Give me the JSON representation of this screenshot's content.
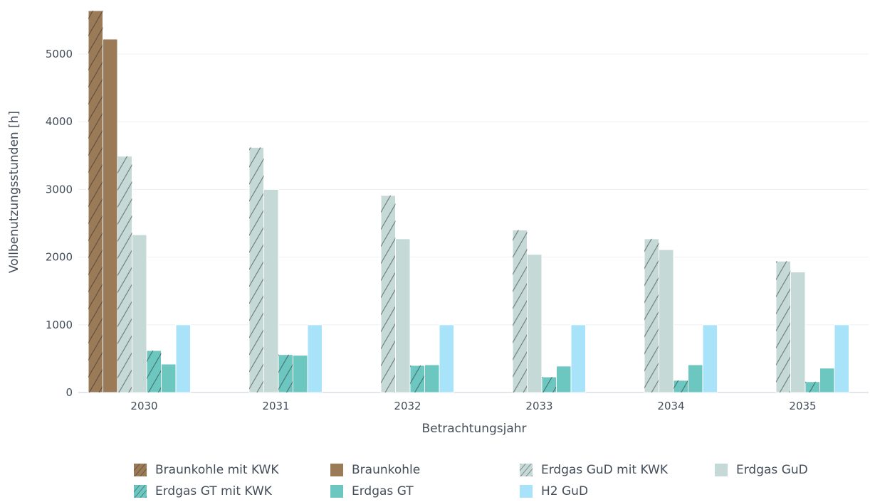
{
  "chart_data": {
    "type": "bar",
    "xlabel": "Betrachtungsjahr",
    "ylabel": "Vollbenutzungsstunden [h]",
    "categories": [
      "2030",
      "2031",
      "2032",
      "2033",
      "2034",
      "2035"
    ],
    "ylim": [
      0,
      5650
    ],
    "yticks": [
      0,
      1000,
      2000,
      3000,
      4000,
      5000
    ],
    "grid": true,
    "legend_position": "bottom",
    "series": [
      {
        "name": "Braunkohle mit KWK",
        "color": "#9b7a58",
        "pattern": "hatched",
        "values": [
          5640,
          null,
          null,
          null,
          null,
          null
        ]
      },
      {
        "name": "Braunkohle",
        "color": "#9b7a58",
        "pattern": "solid",
        "values": [
          5220,
          null,
          null,
          null,
          null,
          null
        ]
      },
      {
        "name": "Erdgas GuD mit KWK",
        "color": "#c5d9d7",
        "pattern": "hatched",
        "values": [
          3490,
          3620,
          2910,
          2400,
          2270,
          1940
        ]
      },
      {
        "name": "Erdgas GuD",
        "color": "#c5d9d7",
        "pattern": "solid",
        "values": [
          2330,
          3000,
          2270,
          2040,
          2110,
          1780
        ]
      },
      {
        "name": "Erdgas GT mit KWK",
        "color": "#6cc7c1",
        "pattern": "hatched",
        "values": [
          620,
          560,
          400,
          230,
          180,
          160
        ]
      },
      {
        "name": "Erdgas GT",
        "color": "#6cc7c1",
        "pattern": "solid",
        "values": [
          420,
          550,
          410,
          390,
          410,
          360
        ]
      },
      {
        "name": "H2 GuD",
        "color": "#a8e3fa",
        "pattern": "solid",
        "values": [
          1000,
          1000,
          1000,
          1000,
          1000,
          1000
        ]
      }
    ]
  }
}
